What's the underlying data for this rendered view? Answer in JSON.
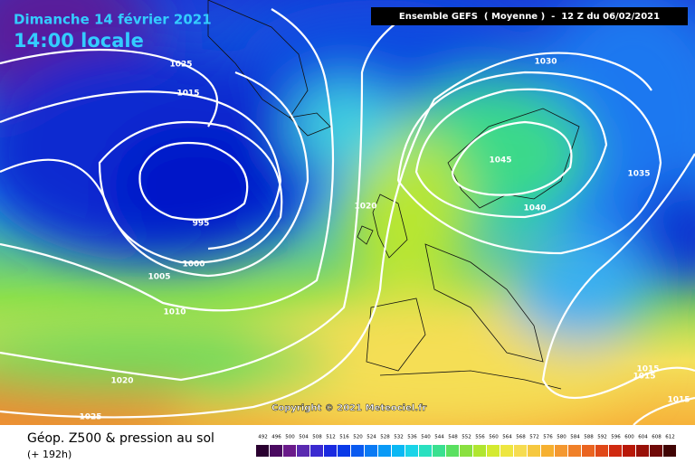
{
  "header": {
    "date": "Dimanche 14 février 2021",
    "time": "14:00 locale",
    "run": "Ensemble GEFS  ( Moyenne )  -  12 Z du 06/02/2021"
  },
  "copyright": "Copyright © 2021 Meteociel.fr",
  "footer": {
    "product": "Géop. Z500 & pression au sol",
    "lead": "(+ 192h)"
  },
  "isobar_labels": [
    "1025",
    "1015",
    "1030",
    "1045",
    "1035",
    "1020",
    "1040",
    "995",
    "1000",
    "1005",
    "1010",
    "1020",
    "1025",
    "1015",
    "1015",
    "1015"
  ],
  "scale": [
    492,
    496,
    500,
    504,
    508,
    512,
    516,
    520,
    524,
    528,
    532,
    536,
    540,
    544,
    548,
    552,
    556,
    560,
    564,
    568,
    572,
    576,
    580,
    584,
    588,
    592,
    596,
    600,
    604,
    608,
    612
  ]
}
